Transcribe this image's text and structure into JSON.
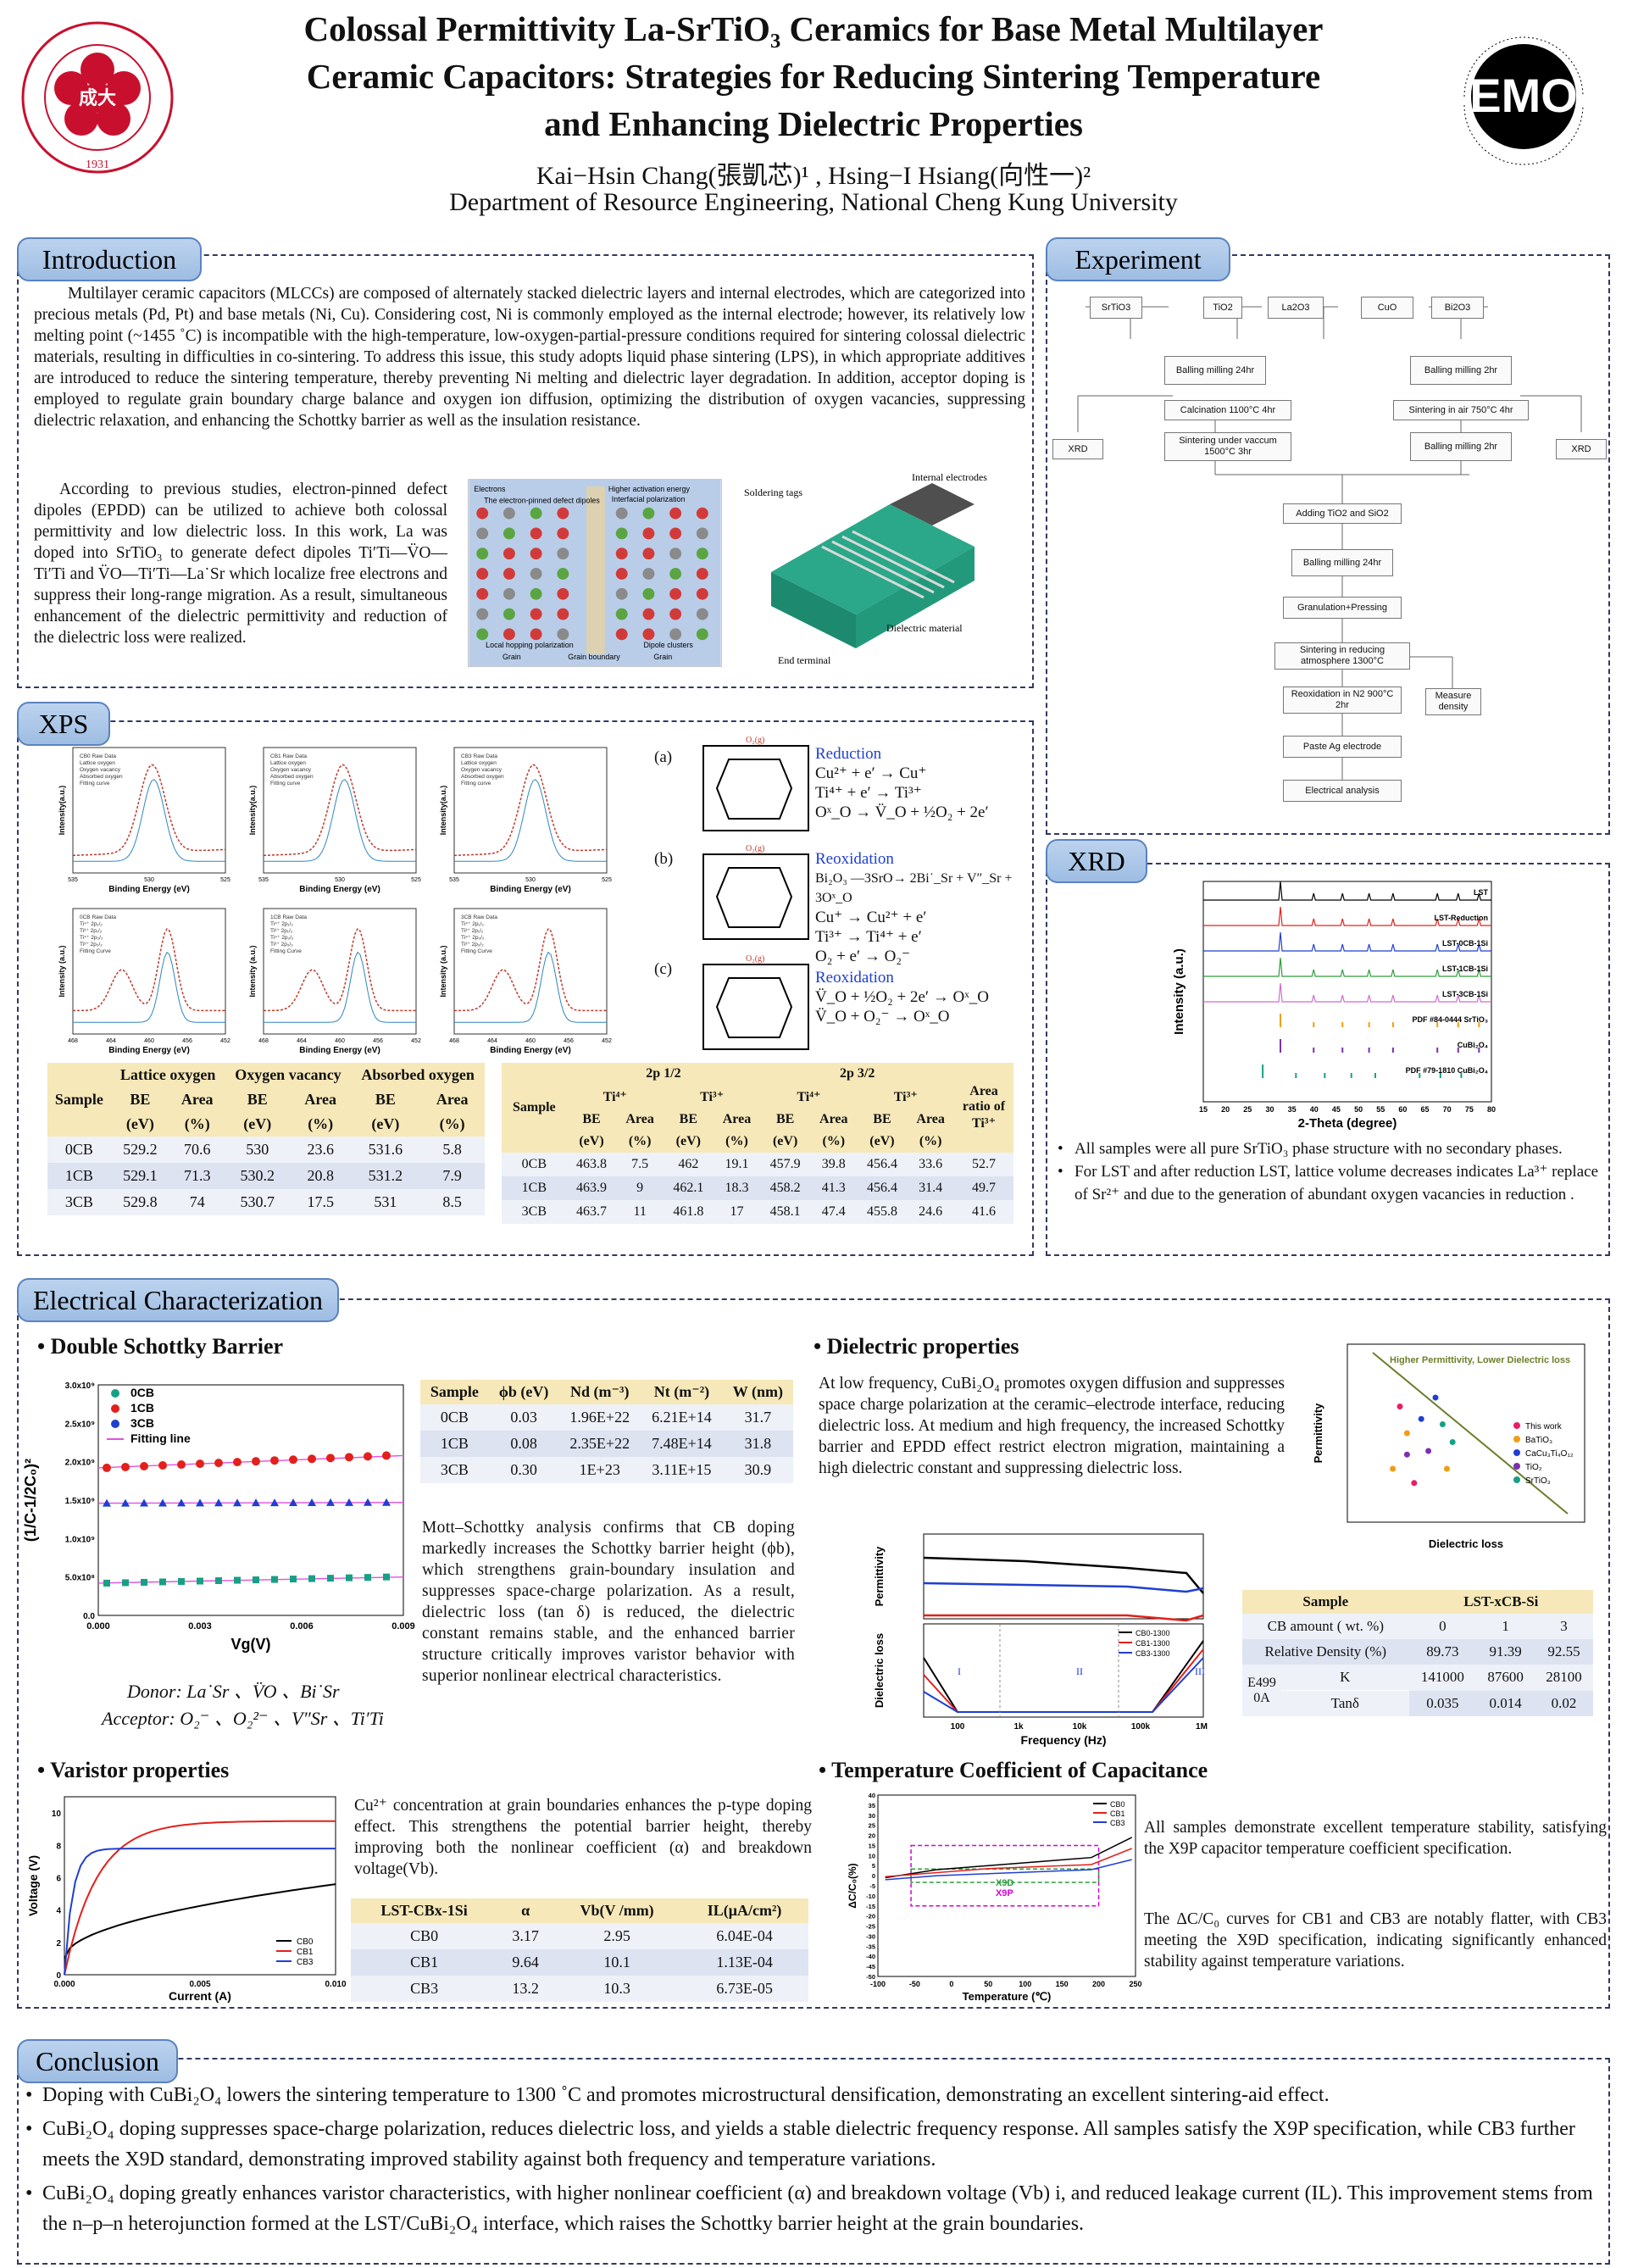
{
  "header": {
    "title_lines": [
      "Colossal Permittivity La-SrTiO₃ Ceramics for Base Metal Multilayer",
      "Ceramic Capacitors: Strategies for Reducing Sintering Temperature",
      "and Enhancing Dielectric Properties"
    ],
    "authors": "Kai−Hsin Chang(張凱芯)¹ , Hsing−I Hsiang(向性一)²",
    "affiliation": "Department of Resource Engineering, National Cheng Kung University",
    "logo_left_text": "NATIONAL CHENG KUNG UNIVERSITY 1931",
    "logo_right_text": "EMO Lab of Electric Magnetic and Optical Ceramics",
    "logo_left_year": "1931",
    "logo_right_mark": "EMO"
  },
  "sections": {
    "introduction": "Introduction",
    "experiment": "Experiment",
    "xps": "XPS",
    "xrd": "XRD",
    "electrical": "Electrical Characterization",
    "conclusion": "Conclusion"
  },
  "introduction": {
    "p1": "Multilayer ceramic capacitors (MLCCs) are composed of alternately stacked dielectric layers and internal electrodes, which are categorized into precious  metals (Pd, Pt) and base metals (Ni, Cu). Considering cost, Ni is commonly employed as the internal electrode; however, its relatively low melting point (~1455 ˚C) is incompatible with the high-temperature, low-oxygen-partial-pressure conditions required for sintering colossal dielectric materials, resulting in difficulties in co-sintering. To address this issue, this study adopts liquid phase sintering (LPS), in which appropriate additives are introduced to reduce the sintering temperature, thereby preventing Ni melting and dielectric layer degradation. In addition, acceptor doping is employed to regulate grain boundary charge balance and oxygen ion diffusion, optimizing the distribution of oxygen vacancies, suppressing dielectric relaxation, and enhancing the Schottky barrier as well as the insulation resistance.",
    "p2": "According to previous studies, electron-pinned defect dipoles (EPDD) can be utilized to achieve both colossal permittivity and low dielectric loss. In this work, La was doped into SrTiO₃ to generate defect dipoles Ti′Ti—V̈O—Ti′Ti and V̈O—Ti′Ti—La˙Sr which localize free electrons and suppress their long-range migration. As a result, simultaneous enhancement of the dielectric permittivity and reduction of the dielectric loss were realized.",
    "fig1_labels": [
      "Electrons",
      "The electron-pinned defect dipoles",
      "Higher activation energy",
      "Interfacial polarization",
      "Local hopping polarization",
      "Grain",
      "Grain boundary",
      "Dipole clusters",
      "Grain"
    ],
    "fig2_labels": [
      "Soldering tags",
      "Internal electrodes",
      "Dielectric material",
      "End terminal"
    ]
  },
  "experiment": {
    "raw_left": [
      "SrTiO3",
      "TiO2",
      "La2O3"
    ],
    "raw_right": [
      "CuO",
      "Bi2O3"
    ],
    "steps_left": [
      "Balling milling 24hr",
      "Calcination 1100°C 4hr",
      "Sintering under vaccum 1500°C 3hr"
    ],
    "steps_right": [
      "Balling milling 2hr",
      "Sintering in air 750°C 4hr",
      "Balling milling 2hr"
    ],
    "xrd_left": "XRD",
    "xrd_right": "XRD",
    "steps_main": [
      "Adding TiO2 and SiO2",
      "Balling milling 24hr",
      "Granulation+Pressing",
      "Sintering in reducing atmosphere 1300°C",
      "Reoxidation in N2 900°C 2hr",
      "Paste Ag electrode",
      "Electrical analysis"
    ],
    "measure": "Measure density"
  },
  "xps": {
    "panels": [
      {
        "legend": [
          "CB0 Raw Data",
          "Lattice oxygen",
          "Oxygen vacancy",
          "Absorbed oxygen",
          "Fitting curve"
        ],
        "xlabel": "Binding Energy (eV)",
        "ylabel": "Intensity(a.u.)",
        "ticks": [
          "535",
          "530",
          "525"
        ]
      },
      {
        "legend": [
          "CB1 Raw Data",
          "Lattice oxygen",
          "Oxygen vacancy",
          "Absorbed oxygen",
          "Fitting curve"
        ],
        "xlabel": "Binding Energy (eV)",
        "ylabel": "Intensity(a.u.)",
        "ticks": [
          "535",
          "530",
          "525"
        ]
      },
      {
        "legend": [
          "CB3 Raw Data",
          "Lattice oxygen",
          "Oxygen vacancy",
          "Absorbed oxygen",
          "Fitting curve"
        ],
        "xlabel": "Binding Energy (eV)",
        "ylabel": "Intensity(a.u.)",
        "ticks": [
          "535",
          "530",
          "525"
        ]
      },
      {
        "legend": [
          "0CB Raw Data",
          "Ti⁴⁺ 2p₁/₂",
          "Ti³⁺ 2p₁/₂",
          "Ti⁴⁺ 2p₃/₂",
          "Ti³⁺ 2p₃/₂",
          "Fitting Curve"
        ],
        "xlabel": "Binding Energy (eV)",
        "ylabel": "Intensity (a.u.)",
        "ticks": [
          "468",
          "464",
          "460",
          "456",
          "452"
        ]
      },
      {
        "legend": [
          "1CB Raw Data",
          "Ti⁴⁺ 2p₁/₂",
          "Ti³⁺ 2p₁/₂",
          "Ti⁴⁺ 2p₃/₂",
          "Ti³⁺ 2p₃/₂",
          "Fitting Curve"
        ],
        "xlabel": "Binding Energy (eV)",
        "ylabel": "Intensity (a.u.)",
        "ticks": [
          "468",
          "464",
          "460",
          "456",
          "452"
        ]
      },
      {
        "legend": [
          "3CB Raw Data",
          "Ti⁴⁺ 2p₁/₂",
          "Ti³⁺ 2p₁/₂",
          "Ti⁴⁺ 2p₃/₂",
          "Ti³⁺ 2p₃/₂",
          "Fitting Curve"
        ],
        "xlabel": "Binding Energy (eV)",
        "ylabel": "Intensity (a.u.)",
        "ticks": [
          "468",
          "464",
          "460",
          "456",
          "452"
        ]
      }
    ],
    "mech_tags": [
      "(a)",
      "(b)",
      "(c)"
    ],
    "mech_titles": [
      "Reduction",
      "Reoxidation",
      "Reoxidation"
    ],
    "mech_eqs": [
      [
        "Cu²⁺ + e′ → Cu⁺",
        "Ti⁴⁺ + e′ → Ti³⁺",
        "Oˣ_O → V̈_O + ½O₂ + 2e′"
      ],
      [
        "Bi₂O₃ —3SrO→ 2Bi˙_Sr + V″_Sr + 3Oˣ_O",
        "Cu⁺ → Cu²⁺ + e′",
        "Ti³⁺ → Ti⁴⁺ + e′",
        "O₂ + e′ → O₂⁻"
      ],
      [
        "V̈_O + ½O₂ + 2e′ → Oˣ_O",
        "V̈_O + O₂⁻ → Oˣ_O"
      ]
    ],
    "table1": {
      "headers": [
        "Sample",
        "Lattice oxygen",
        "Oxygen vacancy",
        "Absorbed oxygen"
      ],
      "sub": [
        "BE",
        "Area",
        "BE",
        "Area",
        "BE",
        "Area"
      ],
      "units": [
        "(eV)",
        "(%)",
        "(eV)",
        "(%)",
        "(eV)",
        "(%)"
      ],
      "rows": [
        [
          "0CB",
          "529.2",
          "70.6",
          "530",
          "23.6",
          "531.6",
          "5.8"
        ],
        [
          "1CB",
          "529.1",
          "71.3",
          "530.2",
          "20.8",
          "531.2",
          "7.9"
        ],
        [
          "3CB",
          "529.8",
          "74",
          "530.7",
          "17.5",
          "531",
          "8.5"
        ]
      ]
    },
    "table2": {
      "groups": [
        "2p 1/2",
        "2p 3/2"
      ],
      "ions": [
        "Ti⁴⁺",
        "Ti³⁺",
        "Ti⁴⁺",
        "Ti³⁺"
      ],
      "sample": "Sample",
      "ratio": "Area ratio of Ti³⁺",
      "sub": [
        "BE",
        "Area",
        "BE",
        "Area",
        "BE",
        "Area",
        "BE",
        "Area"
      ],
      "units": [
        "(eV)",
        "(%)",
        "(eV)",
        "(%)",
        "(eV)",
        "(%)",
        "(eV)",
        "(%)"
      ],
      "rows": [
        [
          "0CB",
          "463.8",
          "7.5",
          "462",
          "19.1",
          "457.9",
          "39.8",
          "456.4",
          "33.6",
          "52.7"
        ],
        [
          "1CB",
          "463.9",
          "9",
          "462.1",
          "18.3",
          "458.2",
          "41.3",
          "456.4",
          "31.4",
          "49.7"
        ],
        [
          "3CB",
          "463.7",
          "11",
          "461.8",
          "17",
          "458.1",
          "47.4",
          "455.8",
          "24.6",
          "41.6"
        ]
      ]
    }
  },
  "xrd": {
    "legend": [
      "LST",
      "LST-Reduction",
      "LST-0CB-1Si",
      "LST-1CB-1Si",
      "LST-3CB-1Si",
      "PDF #84-0444 SrTiO₃",
      "CuBi₂O₄",
      "PDF #79-1810 CuBi₂O₄"
    ],
    "xlabel": "2-Theta (degree)",
    "ylabel": "Intensity (a.u.)",
    "ticks": [
      "15",
      "20",
      "25",
      "30",
      "35",
      "40",
      "45",
      "50",
      "55",
      "60",
      "65",
      "70",
      "75",
      "80"
    ],
    "bullets": [
      "All samples were all pure SrTiO₃ phase structure with no secondary phases.",
      "For LST  and after reduction LST, lattice volume decreases indicates La³⁺  replace of  Sr²⁺ and due to the generation of abundant oxygen vacancies in reduction ."
    ]
  },
  "electrical": {
    "dsb": {
      "title": "• Double Schottky Barrier",
      "legend": [
        "0CB",
        "1CB",
        "3CB",
        "Fitting line"
      ],
      "ylabel": "(1/C-1/2C₀)²",
      "xlabel": "Vg(V)",
      "xticks": [
        "0.000",
        "0.003",
        "0.006",
        "0.009"
      ],
      "yticks": [
        "0.0",
        "5.0x10⁸",
        "1.0x10⁹",
        "1.5x10⁹",
        "2.0x10⁹",
        "2.5x10⁹",
        "3.0x10⁹"
      ],
      "donor": "Donor: La˙Sr 、V̈O 、Bi˙Sr",
      "acceptor": "Acceptor: O₂⁻ 、O₂²⁻ 、V″Sr 、Ti′Ti",
      "table_headers": [
        "Sample",
        "ϕb (eV)",
        "Nd (m⁻³)",
        "Nt (m⁻²)",
        "W (nm)"
      ],
      "rows": [
        [
          "0CB",
          "0.03",
          "1.96E+22",
          "6.21E+14",
          "31.7"
        ],
        [
          "1CB",
          "0.08",
          "2.35E+22",
          "7.48E+14",
          "31.8"
        ],
        [
          "3CB",
          "0.30",
          "1E+23",
          "3.11E+15",
          "30.9"
        ]
      ],
      "text": "Mott–Schottky analysis confirms that CB doping markedly increases the Schottky barrier height (ϕb), which strengthens grain-boundary insulation and suppresses space-charge polarization. As a result, dielectric loss (tan δ) is reduced, the dielectric constant remains stable, and the enhanced barrier structure critically improves varistor behavior with superior nonlinear electrical characteristics."
    },
    "dielectric": {
      "title": "• Dielectric properties",
      "text": "At low frequency, CuBi₂O₄ promotes oxygen diffusion and suppresses space charge polarization at the ceramic–electrode interface, reducing dielectric loss. At medium and high frequency, the increased Schottky barrier and EPDD effect restrict electron migration, maintaining a high dielectric constant and suppressing dielectric loss.",
      "scatter_title": "Higher Permittivity, Lower Dielectric loss",
      "scatter_legend": [
        "This work",
        "BaTiO₃",
        "CaCu₃Ti₄O₁₂",
        "TiO₂",
        "SrTiO₃"
      ],
      "scatter_xlabel": "Dielectric loss",
      "scatter_ylabel": "Permittivity",
      "freq_legend": [
        "CB0-1300",
        "CB1-1300",
        "CB3-1300"
      ],
      "freq_xlabel": "Frequency (Hz)",
      "freq_ylabel_top": "Permittivity",
      "freq_ylabel_bottom": "Dielectric loss",
      "freq_regions": [
        "I",
        "II",
        "III"
      ],
      "freq_xticks": [
        "100",
        "1k",
        "10k",
        "100k",
        "1M"
      ],
      "table": {
        "sample": "Sample",
        "group": "LST-xCB-Si",
        "cb_label": "CB amount ( wt. %)",
        "cb_values": [
          "0",
          "1",
          "3"
        ],
        "rel_label": "Relative Density (%)",
        "rel_values": [
          "89.73",
          "91.39",
          "92.55"
        ],
        "e_label": "E499 0A",
        "k_label": "K",
        "k_values": [
          "141000",
          "87600",
          "28100"
        ],
        "tan_label": "Tanδ",
        "tan_values": [
          "0.035",
          "0.014",
          "0.02"
        ]
      }
    },
    "varistor": {
      "title": "• Varistor properties",
      "legend": [
        "CB0",
        "CB1",
        "CB3"
      ],
      "xlabel": "Current (A)",
      "ylabel": "Voltage (V)",
      "xticks": [
        "0.000",
        "0.005",
        "0.010"
      ],
      "yticks": [
        "0",
        "2",
        "4",
        "6",
        "8",
        "10"
      ],
      "text": "Cu²⁺ concentration at grain boundaries enhances the p-type doping effect. This strengthens the potential barrier height, thereby improving both the nonlinear coefficient (α) and breakdown voltage(Vb).",
      "table_headers": [
        "LST-CBx-1Si",
        "α",
        "Vb(V /mm)",
        "IL(μA/cm²)"
      ],
      "rows": [
        [
          "CB0",
          "3.17",
          "2.95",
          "6.04E-04"
        ],
        [
          "CB1",
          "9.64",
          "10.1",
          "1.13E-04"
        ],
        [
          "CB3",
          "13.2",
          "10.3",
          "6.73E-05"
        ]
      ]
    },
    "tcc": {
      "title": "• Temperature Coefficient of Capacitance",
      "legend": [
        "CB0",
        "CB1",
        "CB3"
      ],
      "xlabel": "Temperature (℃)",
      "ylabel": "ΔC/C₀(%)",
      "xticks": [
        "-100",
        "-50",
        "0",
        "50",
        "100",
        "150",
        "200",
        "250"
      ],
      "yticks": [
        "40",
        "35",
        "30",
        "25",
        "20",
        "15",
        "10",
        "5",
        "0",
        "-5",
        "-10",
        "-15",
        "-20",
        "-25",
        "-30",
        "-35",
        "-40",
        "-45",
        "-50"
      ],
      "spec_labels": [
        "X9D",
        "X9P"
      ],
      "text1": "All samples demonstrate excellent temperature stability, satisfying the X9P capacitor temperature coefficient specification.",
      "text2": "The ΔC/C₀ curves for CB1 and CB3 are notably flatter, with CB3 meeting the X9D specification, indicating significantly enhanced stability against temperature variations."
    }
  },
  "conclusion": [
    "Doping with CuBi₂O₄ lowers the sintering temperature to 1300 ˚C and promotes microstructural densification, demonstrating an excellent sintering-aid effect.",
    "CuBi₂O₄ doping suppresses space-charge polarization, reduces dielectric loss, and yields a stable dielectric frequency response. All samples satisfy the X9P specification, while CB3 further meets the X9D standard, demonstrating improved stability against both frequency and temperature variations.",
    "CuBi₂O₄ doping greatly enhances varistor characteristics, with higher nonlinear coefficient (α) and breakdown voltage (Vb) i, and reduced leakage current (IL). This improvement stems from the n–p–n heterojunction formed at the LST/CuBi₂O₄ interface, which raises the Schottky barrier height at the grain boundaries."
  ],
  "colors": {
    "frame": "#2f3a63",
    "tab": "#a9c6ea",
    "logo_red": "#c8102e",
    "table_head": "#f6e8b8",
    "table_row": "#dde3f1",
    "cb0": "#000000",
    "cb1": "#e3201b",
    "cb3": "#1f3fd1"
  }
}
